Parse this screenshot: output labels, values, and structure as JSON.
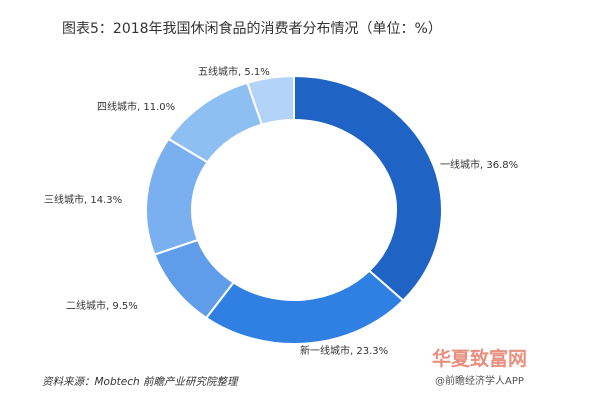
{
  "title": "图表5：2018年我国休闲食品的消费者分布情况（单位：%）",
  "chart_data": {
    "type": "pie",
    "variant": "donut",
    "title": "图表5：2018年我国休闲食品的消费者分布情况（单位：%）",
    "categories": [
      "一线城市",
      "新一线城市",
      "二线城市",
      "三线城市",
      "四线城市",
      "五线城市"
    ],
    "values": [
      36.8,
      23.3,
      9.5,
      14.3,
      11.0,
      5.1
    ],
    "labels": [
      "一线城市, 36.8%",
      "新一线城市, 23.3%",
      "二线城市, 9.5%",
      "三线城市, 14.3%",
      "四线城市, 11.0%",
      "五线城市, 5.1%"
    ],
    "colors": [
      "#1f63c4",
      "#2f80e2",
      "#5f9deb",
      "#7bb0f0",
      "#8ebff2",
      "#b3d3f8"
    ],
    "start": "top",
    "direction": "clockwise"
  },
  "source": "资料来源：Mobtech 前瞻产业研究院整理",
  "watermark": "华夏致富网",
  "app_credit": "@前瞻经济学人APP"
}
